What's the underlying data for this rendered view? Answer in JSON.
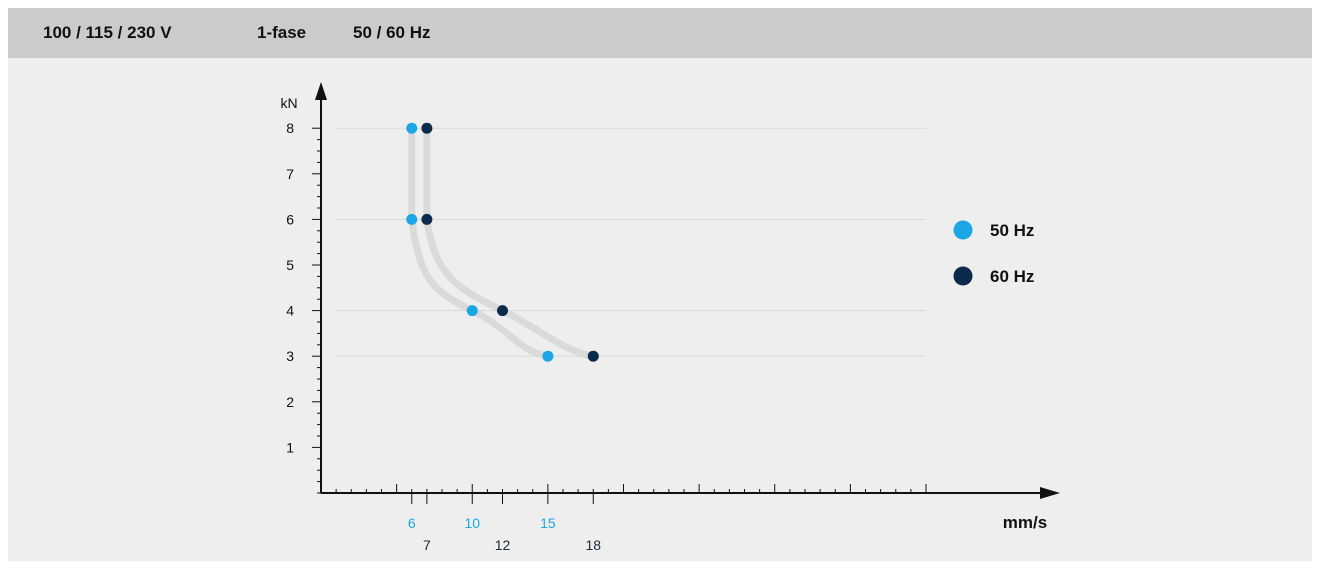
{
  "header": {
    "voltage": "100 / 115 / 230 V",
    "phase": "1-fase",
    "frequency": "50 / 60 Hz"
  },
  "chart_data": {
    "type": "scatter",
    "xlabel": "mm/s",
    "ylabel": "kN",
    "xlim": [
      0,
      48
    ],
    "ylim": [
      0,
      8.8
    ],
    "grid": true,
    "legend_position": "right",
    "y_ticks": [
      1,
      2,
      3,
      4,
      5,
      6,
      7,
      8
    ],
    "series": [
      {
        "name": "50 Hz",
        "color": "#1ba6e6",
        "x_tick_labels": [
          "6",
          "10",
          "15"
        ],
        "points": [
          {
            "x": 6,
            "y": 8
          },
          {
            "x": 6,
            "y": 6
          },
          {
            "x": 10,
            "y": 4
          },
          {
            "x": 15,
            "y": 3
          }
        ]
      },
      {
        "name": "60 Hz",
        "color": "#0c2a4c",
        "x_tick_labels": [
          "7",
          "12",
          "18"
        ],
        "points": [
          {
            "x": 7,
            "y": 8
          },
          {
            "x": 7,
            "y": 6
          },
          {
            "x": 12,
            "y": 4
          },
          {
            "x": 18,
            "y": 3
          }
        ]
      }
    ]
  }
}
